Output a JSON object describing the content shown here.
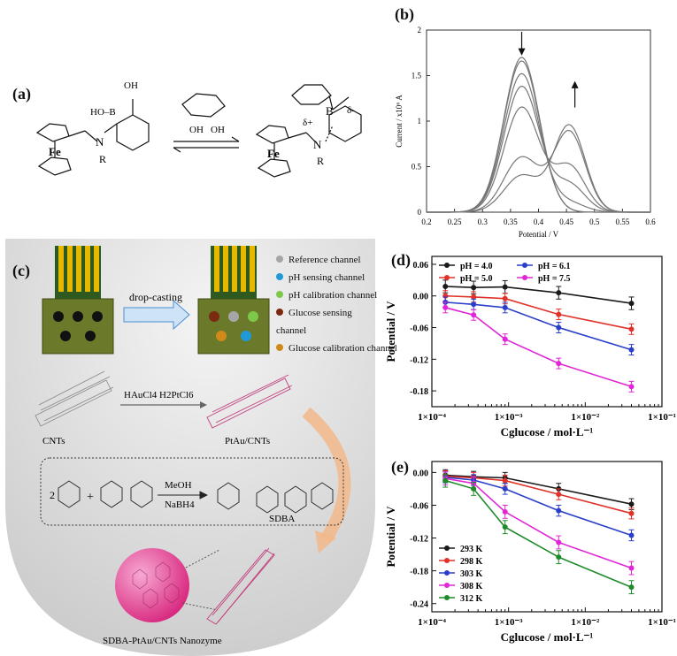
{
  "panel_labels": {
    "a": "(a)",
    "b": "(b)",
    "c": "(c)",
    "d": "(d)",
    "e": "(e)"
  },
  "panel_a": {
    "fe_label": "Fe",
    "n_label": "N",
    "r_label": "R",
    "oh_label": "OH",
    "bo_label": "HO–B",
    "b_label": "B",
    "delta_plus": "δ+",
    "delta_minus": "δ-"
  },
  "panel_c": {
    "drop_casting": "drop-casting",
    "legend": [
      {
        "label": "Reference channel",
        "color": "#a6a6a6"
      },
      {
        "label": "pH sensing channel",
        "color": "#1e9ad6"
      },
      {
        "label": "pH calibration channel",
        "color": "#7ec849"
      },
      {
        "label": "Glucose sensing channel",
        "color": "#7a2a10"
      },
      {
        "label": "Glucose calibration channel",
        "color": "#cf8a1a"
      }
    ],
    "cnts_label": "CNTs",
    "reagents_label": "HAuCl4  H2PtCl6",
    "ptau_label": "PtAu/CNTs",
    "meoh_label": "MeOH",
    "nabh4_label": "NaBH4",
    "sdba_label": "SDBA",
    "coef_label": "2",
    "nanozyme_label": "SDBA-PtAu/CNTs Nanozyme"
  },
  "chart_data": [
    {
      "id": "b",
      "type": "line",
      "xlabel": "Potential / V",
      "ylabel": "Current / x10⁶ A",
      "xlim": [
        0.2,
        0.6
      ],
      "ylim": [
        0,
        2
      ],
      "xticks": [
        0.2,
        0.25,
        0.3,
        0.35,
        0.4,
        0.45,
        0.5,
        0.55,
        0.6
      ],
      "yticks": [
        0,
        0.5,
        1,
        1.5,
        2
      ],
      "series": [
        {
          "peak1": 1.7,
          "peak2": 0.0,
          "shoulder": 0.0
        },
        {
          "peak1": 1.66,
          "peak2": 0.0,
          "shoulder": 0.0
        },
        {
          "peak1": 1.52,
          "peak2": 0.1,
          "shoulder": 0.0
        },
        {
          "peak1": 1.38,
          "peak2": 0.3,
          "shoulder": 0.0
        },
        {
          "peak1": 1.15,
          "peak2": 0.5,
          "shoulder": 0.0
        },
        {
          "peak1": 0.6,
          "peak2": 0.88,
          "shoulder": 0.0
        },
        {
          "peak1": 0.4,
          "peak2": 0.95,
          "shoulder": 0.0
        }
      ],
      "arrows": [
        "down at first peak",
        "up at second peak"
      ]
    },
    {
      "id": "d",
      "type": "line",
      "xlabel": "Cglucose / mol·L⁻¹",
      "ylabel": "Potential / V",
      "x_scale": "log",
      "xlim": [
        0.0001,
        0.1
      ],
      "ylim": [
        -0.21,
        0.075
      ],
      "yticks": [
        0.06,
        0.0,
        -0.06,
        -0.12,
        -0.18
      ],
      "ytick_labels": [
        "0.06",
        "0.00",
        "-0.06",
        "-0.12",
        "-0.18"
      ],
      "xtick_labels": [
        "1×10⁻⁴",
        "1×10⁻³",
        "1×10⁻²",
        "1×10⁻¹"
      ],
      "legend_position": "top",
      "x": [
        0.00015,
        0.00035,
        0.0009,
        0.0045,
        0.04
      ],
      "series": [
        {
          "name": "pH = 4.0",
          "color": "#1a1a1a",
          "values": [
            0.018,
            0.016,
            0.017,
            0.006,
            -0.014
          ],
          "err": 0.012
        },
        {
          "name": "pH = 5.0",
          "color": "#e0322a",
          "values": [
            0.0,
            -0.002,
            -0.005,
            -0.035,
            -0.063
          ],
          "err": 0.01
        },
        {
          "name": "pH = 6.1",
          "color": "#2a3fc9",
          "values": [
            -0.012,
            -0.016,
            -0.022,
            -0.06,
            -0.102
          ],
          "err": 0.01
        },
        {
          "name": "pH = 7.5",
          "color": "#e026d6",
          "values": [
            -0.022,
            -0.036,
            -0.082,
            -0.128,
            -0.172
          ],
          "err": 0.01
        }
      ]
    },
    {
      "id": "e",
      "type": "line",
      "xlabel": "Cglucose / mol·L⁻¹",
      "ylabel": "Potential / V",
      "x_scale": "log",
      "xlim": [
        0.0001,
        0.1
      ],
      "ylim": [
        -0.255,
        0.02
      ],
      "yticks": [
        0.0,
        -0.06,
        -0.12,
        -0.18,
        -0.24
      ],
      "ytick_labels": [
        "0.00",
        "-0.06",
        "-0.12",
        "-0.18",
        "-0.24"
      ],
      "xtick_labels": [
        "1×10⁻⁴",
        "1×10⁻³",
        "1×10⁻²",
        "1×10⁻¹"
      ],
      "legend_position": "bottom-left",
      "x": [
        0.00015,
        0.00035,
        0.0009,
        0.0045,
        0.04
      ],
      "series": [
        {
          "name": "293 K",
          "color": "#1a1a1a",
          "values": [
            -0.005,
            -0.008,
            -0.01,
            -0.03,
            -0.058
          ],
          "err": 0.01
        },
        {
          "name": "298 K",
          "color": "#e0322a",
          "values": [
            -0.007,
            -0.01,
            -0.015,
            -0.04,
            -0.075
          ],
          "err": 0.01
        },
        {
          "name": "303 K",
          "color": "#2a3fc9",
          "values": [
            -0.009,
            -0.014,
            -0.03,
            -0.07,
            -0.115
          ],
          "err": 0.01
        },
        {
          "name": "308 K",
          "color": "#e026d6",
          "values": [
            -0.011,
            -0.02,
            -0.072,
            -0.128,
            -0.175
          ],
          "err": 0.012
        },
        {
          "name": "312 K",
          "color": "#1f8a2a",
          "values": [
            -0.015,
            -0.03,
            -0.1,
            -0.155,
            -0.21
          ],
          "err": 0.012
        }
      ]
    }
  ]
}
